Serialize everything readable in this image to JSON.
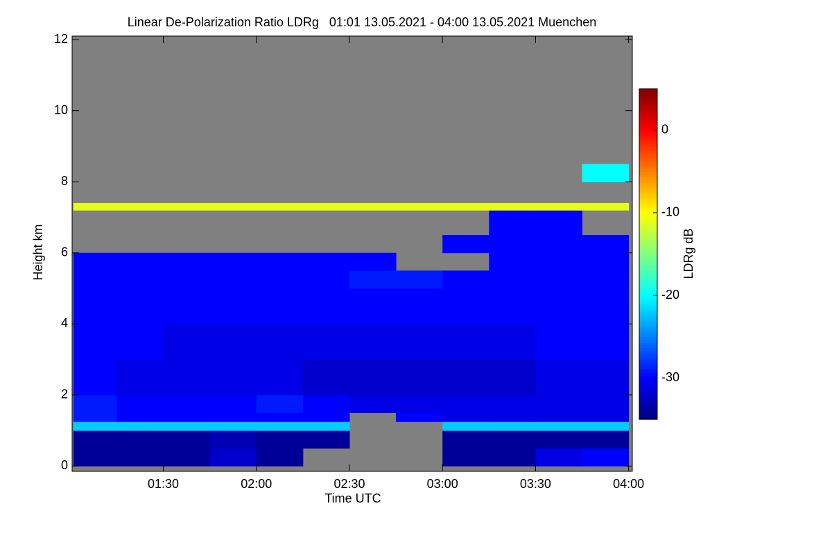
{
  "chart_data": {
    "type": "heatmap",
    "title": "Linear De-Polarization Ratio LDRg   01:01 13.05.2021 - 04:00 13.05.2021 Muenchen",
    "xlabel": "Time UTC",
    "ylabel": "Height km",
    "x_edges": [
      1.0167,
      1.25,
      1.5,
      1.75,
      2.0,
      2.25,
      2.5,
      2.75,
      3.0,
      3.25,
      3.5,
      3.75,
      4.0
    ],
    "y_edges": [
      0,
      0.5,
      1.0,
      1.25,
      1.5,
      2,
      3,
      4,
      5,
      5.5,
      6,
      6.5,
      7.2,
      7.4,
      8,
      8.5,
      12
    ],
    "z": [
      [
        -34,
        -34,
        -34,
        -32,
        -34,
        null,
        null,
        null,
        -34,
        -34,
        -31,
        -30
      ],
      [
        -34,
        -34,
        -34,
        -33,
        -34,
        -34,
        null,
        null,
        -34,
        -34,
        -34,
        -34
      ],
      [
        -22,
        -22,
        -22,
        -22,
        -22,
        -22,
        null,
        null,
        -22,
        -22,
        -22,
        -22
      ],
      [
        -29,
        -30,
        -30,
        -30,
        -30,
        -30,
        null,
        -30,
        -31,
        -31,
        -31,
        -31
      ],
      [
        -29,
        -30,
        -30,
        -30,
        -29,
        -30,
        -31,
        -31,
        -31,
        -31,
        -31,
        -31
      ],
      [
        -30,
        -31,
        -31,
        -31,
        -31,
        -32,
        -32,
        -32,
        -32,
        -32,
        -31,
        -31
      ],
      [
        -30,
        -30,
        -31,
        -31,
        -31,
        -31,
        -31,
        -31,
        -31,
        -31,
        -30,
        -30
      ],
      [
        -30,
        -30,
        -30,
        -30,
        -30,
        -30,
        -30,
        -30,
        -30,
        -30,
        -30,
        -30
      ],
      [
        -30,
        -30,
        -30,
        -30,
        -30,
        -30,
        -29,
        -29,
        -30,
        -30,
        -30,
        -30
      ],
      [
        -30,
        -30,
        -30,
        -30,
        -30,
        -30,
        -30,
        null,
        null,
        -30,
        -30,
        -30
      ],
      [
        null,
        null,
        null,
        null,
        null,
        null,
        null,
        null,
        -30,
        -30,
        -30,
        -30
      ],
      [
        null,
        null,
        null,
        null,
        null,
        null,
        null,
        null,
        null,
        -30,
        -30,
        null
      ],
      [
        -11,
        -11,
        -11,
        -11,
        -11,
        -11,
        -11,
        -11,
        -11,
        -11,
        -11,
        -11
      ],
      [
        null,
        null,
        null,
        null,
        null,
        null,
        null,
        null,
        null,
        null,
        null,
        null
      ],
      [
        null,
        null,
        null,
        null,
        null,
        null,
        null,
        null,
        null,
        null,
        null,
        -20
      ],
      [
        null,
        null,
        null,
        null,
        null,
        null,
        null,
        null,
        null,
        null,
        null,
        null
      ]
    ],
    "xlim": [
      1.01,
      4.02
    ],
    "ylim": [
      -0.15,
      12.1
    ],
    "xticks": [
      {
        "value": 1.5,
        "label": "01:30"
      },
      {
        "value": 2.0,
        "label": "02:00"
      },
      {
        "value": 2.5,
        "label": "02:30"
      },
      {
        "value": 3.0,
        "label": "03:00"
      },
      {
        "value": 3.5,
        "label": "03:30"
      },
      {
        "value": 4.0,
        "label": "04:00"
      }
    ],
    "yticks": [
      0,
      2,
      4,
      6,
      8,
      10,
      12
    ],
    "missing_color": "#808080",
    "colorbar": {
      "label": "LDRg dB",
      "zlim": [
        -35,
        5
      ],
      "ticks": [
        0,
        -10,
        -20,
        -30
      ],
      "colormap": "jet"
    }
  }
}
